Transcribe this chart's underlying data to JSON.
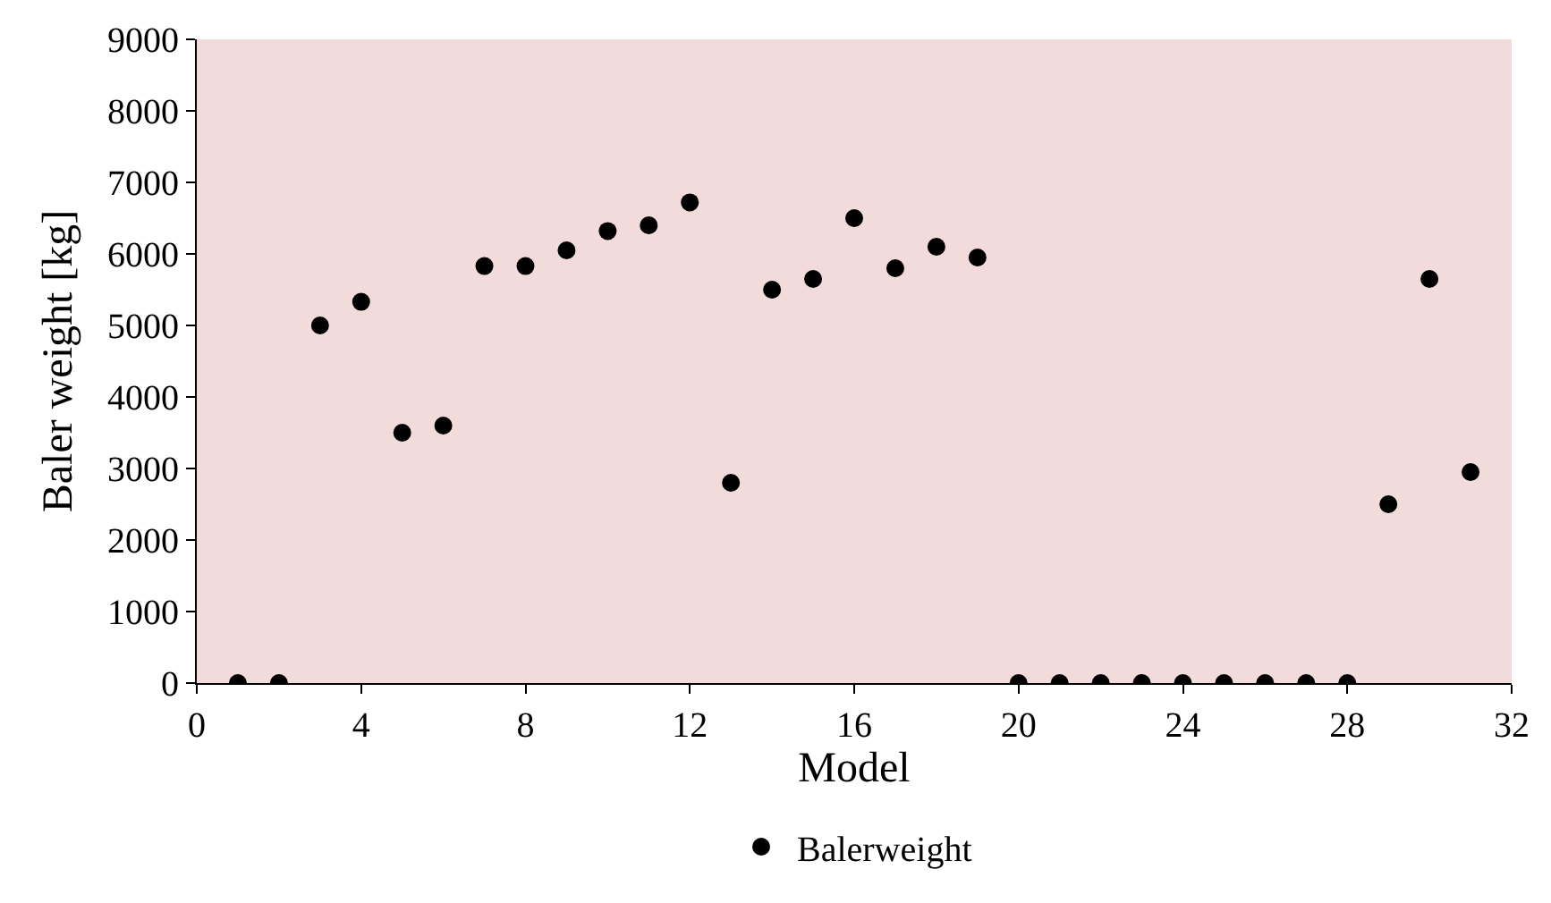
{
  "chart_data": {
    "type": "scatter",
    "xlabel": "Model",
    "ylabel": "Baler weight [kg]",
    "x": [
      1,
      2,
      3,
      4,
      5,
      6,
      7,
      8,
      9,
      10,
      11,
      12,
      13,
      14,
      15,
      16,
      17,
      18,
      19,
      20,
      21,
      22,
      23,
      24,
      25,
      26,
      27,
      28,
      29,
      30,
      31
    ],
    "series": [
      {
        "name": "Balerweight",
        "color": "#000000",
        "values": [
          0,
          0,
          5000,
          5330,
          3500,
          3600,
          5830,
          5830,
          6050,
          6320,
          6400,
          6720,
          2800,
          5500,
          5650,
          6500,
          5800,
          6100,
          5950,
          0,
          0,
          0,
          0,
          0,
          0,
          0,
          0,
          0,
          2500,
          5650,
          2950
        ]
      }
    ],
    "xlim": [
      0,
      32
    ],
    "xticks": [
      0,
      4,
      8,
      12,
      16,
      20,
      24,
      28,
      32
    ],
    "ylim": [
      0,
      9000
    ],
    "yticks": [
      0,
      1000,
      2000,
      3000,
      4000,
      5000,
      6000,
      7000,
      8000,
      9000
    ],
    "grid": false,
    "legend": "bottom",
    "marker": "circle"
  }
}
